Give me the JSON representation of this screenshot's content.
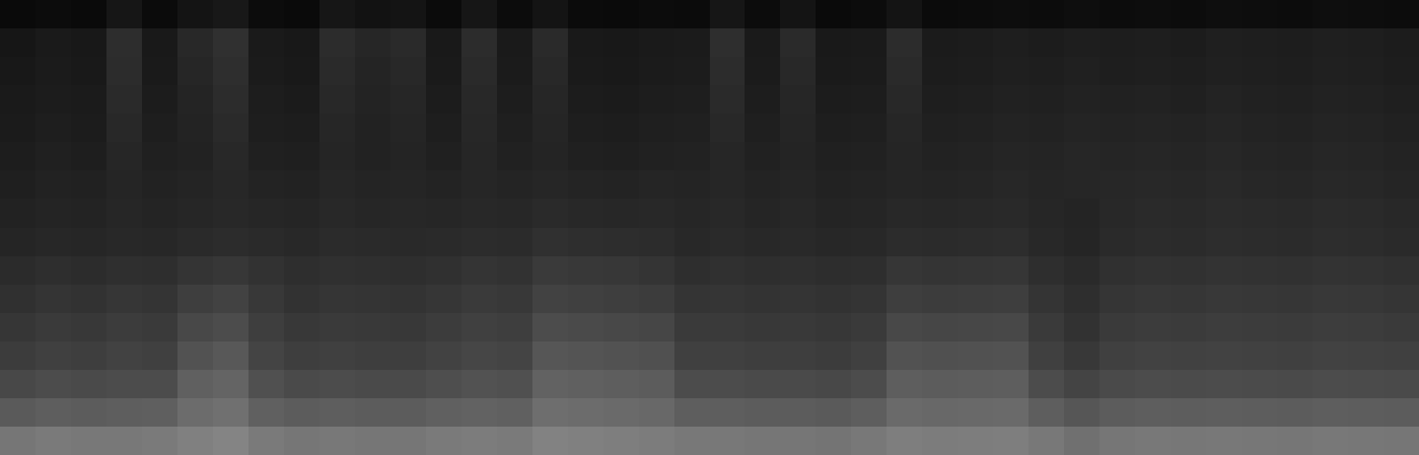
{
  "chart_data": {
    "type": "heatmap",
    "color": "gray",
    "tick_labels": false,
    "zlim": [
      0,
      255
    ],
    "cells": [
      [
        10,
        12,
        10,
        22,
        11,
        20,
        24,
        12,
        10,
        22,
        18,
        20,
        11,
        22,
        12,
        20,
        11,
        10,
        12,
        11,
        22,
        12,
        20,
        10,
        12,
        20,
        11,
        12,
        13,
        12,
        14,
        12,
        13,
        12,
        14,
        13,
        12,
        14,
        13,
        12
      ],
      [
        22,
        26,
        24,
        45,
        25,
        40,
        48,
        26,
        24,
        44,
        38,
        42,
        25,
        44,
        26,
        42,
        25,
        24,
        26,
        27,
        46,
        26,
        42,
        25,
        26,
        44,
        27,
        28,
        30,
        28,
        30,
        29,
        30,
        28,
        31,
        30,
        29,
        31,
        30,
        28
      ],
      [
        24,
        27,
        25,
        44,
        26,
        38,
        46,
        27,
        25,
        42,
        36,
        40,
        26,
        42,
        27,
        40,
        26,
        25,
        27,
        28,
        44,
        27,
        40,
        26,
        27,
        42,
        28,
        29,
        31,
        30,
        32,
        30,
        31,
        30,
        32,
        31,
        30,
        32,
        31,
        29
      ],
      [
        26,
        28,
        27,
        42,
        28,
        36,
        44,
        29,
        27,
        40,
        35,
        38,
        28,
        40,
        29,
        38,
        28,
        27,
        29,
        30,
        42,
        29,
        38,
        28,
        29,
        40,
        30,
        31,
        33,
        32,
        34,
        33,
        34,
        32,
        35,
        33,
        32,
        34,
        33,
        31
      ],
      [
        27,
        30,
        28,
        40,
        30,
        35,
        42,
        30,
        29,
        38,
        34,
        37,
        30,
        39,
        31,
        37,
        30,
        29,
        31,
        32,
        40,
        31,
        37,
        30,
        31,
        38,
        32,
        33,
        35,
        34,
        36,
        35,
        36,
        35,
        37,
        35,
        34,
        36,
        35,
        33
      ],
      [
        29,
        32,
        30,
        38,
        32,
        34,
        40,
        32,
        31,
        37,
        34,
        36,
        32,
        38,
        33,
        36,
        32,
        31,
        33,
        34,
        38,
        33,
        36,
        32,
        33,
        37,
        34,
        35,
        37,
        36,
        38,
        37,
        38,
        37,
        39,
        37,
        36,
        38,
        37,
        35
      ],
      [
        31,
        34,
        33,
        37,
        34,
        36,
        39,
        35,
        34,
        38,
        36,
        37,
        35,
        38,
        36,
        38,
        36,
        35,
        37,
        36,
        38,
        35,
        37,
        34,
        35,
        37,
        36,
        37,
        39,
        37,
        38,
        39,
        40,
        39,
        41,
        39,
        38,
        40,
        39,
        37
      ],
      [
        34,
        36,
        35,
        38,
        36,
        38,
        40,
        38,
        37,
        40,
        38,
        39,
        38,
        40,
        39,
        42,
        40,
        39,
        40,
        38,
        40,
        37,
        39,
        36,
        37,
        40,
        39,
        40,
        41,
        38,
        36,
        40,
        42,
        41,
        43,
        42,
        41,
        43,
        42,
        40
      ],
      [
        37,
        39,
        38,
        40,
        39,
        42,
        44,
        42,
        40,
        43,
        42,
        41,
        42,
        44,
        43,
        48,
        46,
        45,
        44,
        40,
        42,
        40,
        41,
        39,
        40,
        44,
        43,
        44,
        45,
        40,
        37,
        42,
        44,
        43,
        45,
        44,
        43,
        45,
        44,
        42
      ],
      [
        43,
        46,
        44,
        47,
        46,
        52,
        55,
        50,
        46,
        48,
        47,
        46,
        48,
        52,
        50,
        58,
        56,
        55,
        52,
        46,
        48,
        46,
        47,
        45,
        46,
        54,
        52,
        53,
        54,
        46,
        42,
        48,
        50,
        49,
        51,
        50,
        49,
        51,
        50,
        48
      ],
      [
        48,
        52,
        50,
        54,
        52,
        62,
        66,
        56,
        50,
        53,
        52,
        51,
        54,
        58,
        56,
        66,
        64,
        62,
        60,
        52,
        53,
        51,
        52,
        50,
        52,
        62,
        60,
        61,
        62,
        52,
        46,
        53,
        55,
        54,
        56,
        55,
        54,
        56,
        55,
        53
      ],
      [
        54,
        58,
        56,
        60,
        58,
        72,
        76,
        62,
        56,
        58,
        57,
        56,
        60,
        64,
        62,
        76,
        74,
        72,
        70,
        58,
        58,
        56,
        57,
        55,
        58,
        72,
        70,
        71,
        72,
        58,
        50,
        58,
        60,
        59,
        61,
        60,
        59,
        61,
        60,
        58
      ],
      [
        60,
        64,
        62,
        66,
        64,
        82,
        88,
        68,
        62,
        64,
        62,
        62,
        66,
        70,
        68,
        86,
        84,
        82,
        80,
        64,
        64,
        62,
        62,
        60,
        64,
        82,
        80,
        81,
        82,
        64,
        56,
        64,
        66,
        65,
        66,
        65,
        64,
        66,
        65,
        64
      ],
      [
        72,
        76,
        74,
        76,
        76,
        96,
        100,
        80,
        74,
        76,
        74,
        74,
        78,
        82,
        80,
        98,
        96,
        94,
        92,
        76,
        76,
        74,
        74,
        72,
        76,
        94,
        92,
        93,
        94,
        76,
        68,
        74,
        76,
        75,
        76,
        75,
        74,
        76,
        75,
        74
      ],
      [
        90,
        94,
        92,
        94,
        95,
        108,
        112,
        96,
        92,
        94,
        92,
        92,
        96,
        98,
        96,
        110,
        108,
        106,
        104,
        94,
        94,
        92,
        92,
        90,
        94,
        106,
        104,
        105,
        106,
        94,
        86,
        92,
        94,
        93,
        94,
        93,
        92,
        94,
        93,
        92
      ],
      [
        118,
        122,
        120,
        120,
        122,
        128,
        132,
        122,
        118,
        120,
        118,
        118,
        122,
        124,
        122,
        130,
        128,
        126,
        124,
        120,
        120,
        118,
        118,
        116,
        120,
        126,
        124,
        125,
        126,
        120,
        112,
        118,
        120,
        119,
        120,
        119,
        118,
        120,
        119,
        118
      ]
    ]
  }
}
